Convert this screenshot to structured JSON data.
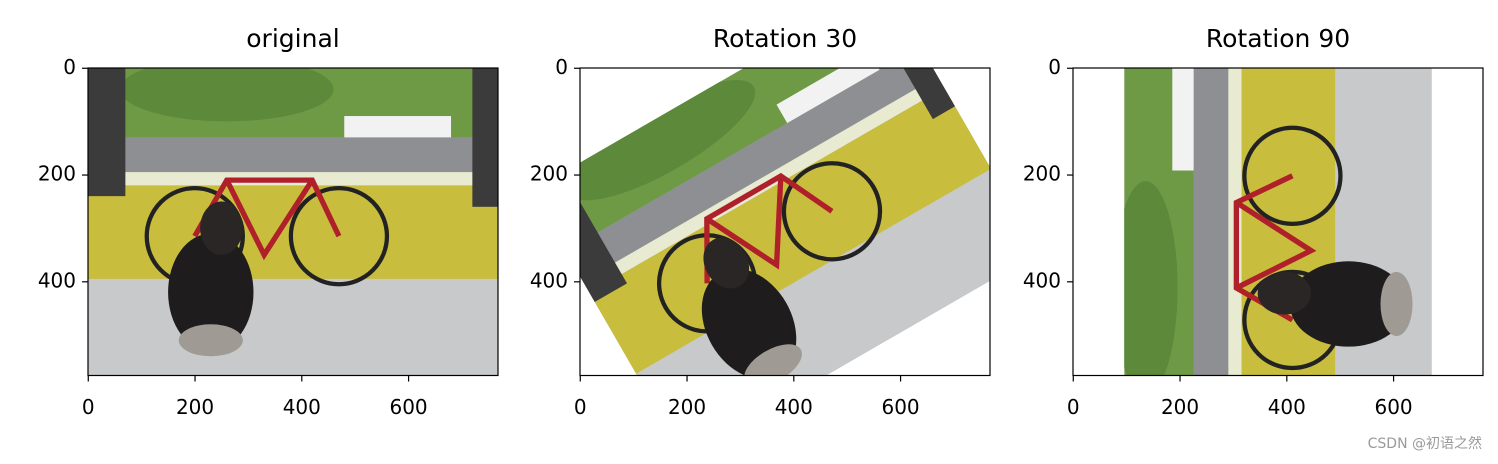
{
  "chart_data": [
    {
      "type": "image",
      "title": "original",
      "xlim": [
        -0.5,
        767.5
      ],
      "ylim": [
        575.5,
        -0.5
      ],
      "xticks": [
        0,
        200,
        400,
        600
      ],
      "yticks": [
        0,
        200,
        400
      ]
    },
    {
      "type": "image",
      "title": "Rotation 30",
      "xlim": [
        -0.5,
        767.5
      ],
      "ylim": [
        575.5,
        -0.5
      ],
      "xticks": [
        0,
        200,
        400,
        600
      ],
      "yticks": [
        0,
        200,
        400
      ]
    },
    {
      "type": "image",
      "title": "Rotation 90",
      "xlim": [
        -0.5,
        767.5
      ],
      "ylim": [
        575.5,
        -0.5
      ],
      "xticks": [
        0,
        200,
        400,
        600
      ],
      "yticks": [
        0,
        200,
        400
      ]
    }
  ],
  "watermark": "CSDN @初语之然"
}
